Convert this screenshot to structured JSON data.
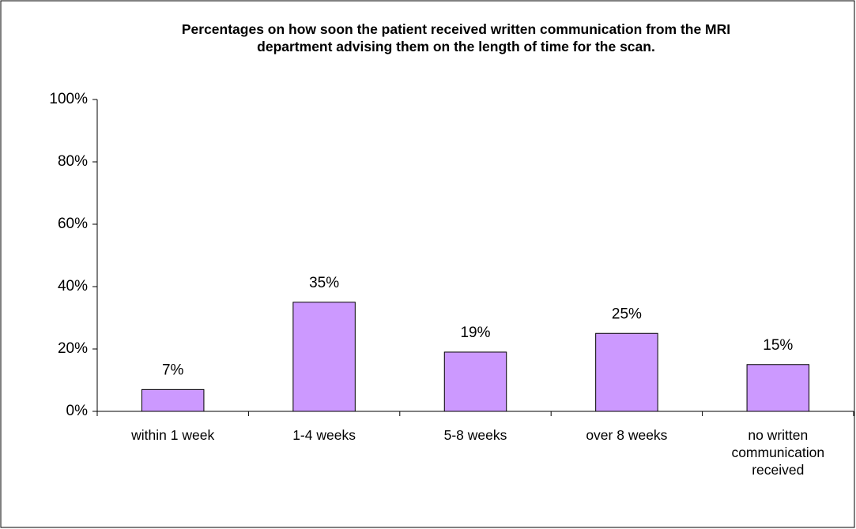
{
  "chart_data": {
    "type": "bar",
    "title": "Percentages on how soon the patient received written communication from the MRI department advising them on the length of time for the scan.",
    "categories": [
      "within 1 week",
      "1-4 weeks",
      "5-8 weeks",
      "over 8 weeks",
      "no written communication received"
    ],
    "values": [
      7,
      35,
      19,
      25,
      15
    ],
    "value_labels": [
      "7%",
      "35%",
      "19%",
      "25%",
      "15%"
    ],
    "color": "#cc99ff",
    "ylim": [
      0,
      100
    ],
    "yticks": [
      {
        "value": 0,
        "label": "0%"
      },
      {
        "value": 20,
        "label": "20%"
      },
      {
        "value": 40,
        "label": "40%"
      },
      {
        "value": 60,
        "label": "60%"
      },
      {
        "value": 80,
        "label": "80%"
      },
      {
        "value": 100,
        "label": "100%"
      }
    ],
    "grid": false
  }
}
